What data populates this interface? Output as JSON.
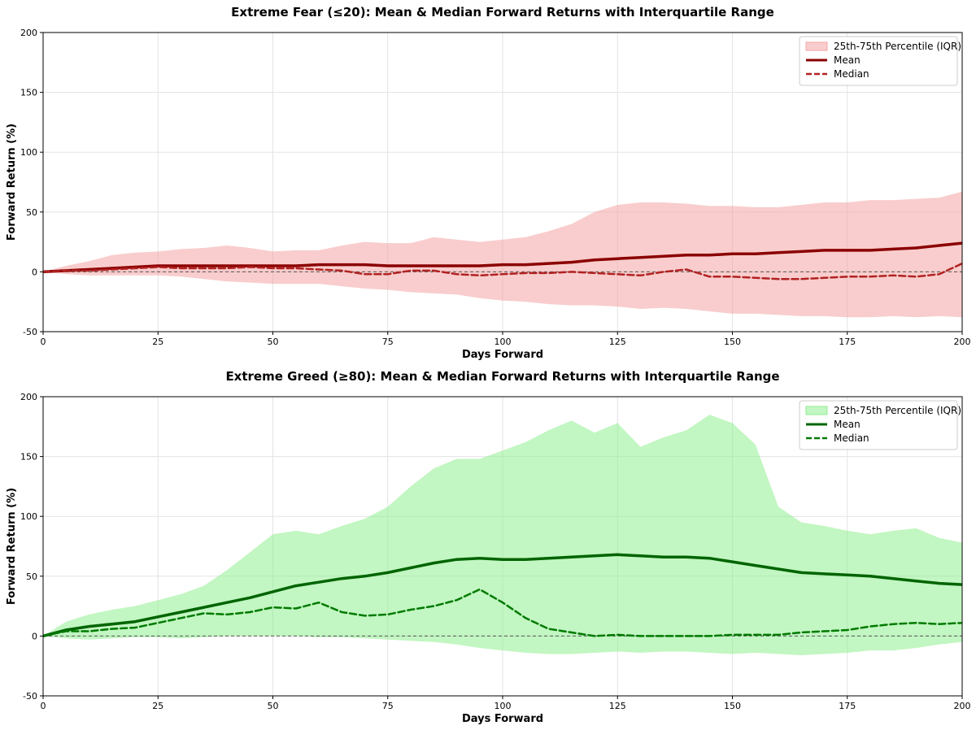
{
  "chart_data": [
    {
      "type": "area",
      "title": "Extreme Fear (≤20): Mean & Median Forward Returns with Interquartile Range",
      "xlabel": "Days Forward",
      "ylabel": "Forward Return (%)",
      "xlim": [
        0,
        200
      ],
      "ylim": [
        -50,
        200
      ],
      "xticks": [
        "0",
        "25",
        "50",
        "75",
        "100",
        "125",
        "150",
        "175",
        "200"
      ],
      "yticks": [
        "-50",
        "0",
        "50",
        "100",
        "150",
        "200"
      ],
      "grid": true,
      "legend_position": "top-right",
      "zero_line": true,
      "colors": {
        "band": "#f4a4a4",
        "mean": "#8b0000",
        "median": "#b22222"
      },
      "legend": [
        "25th-75th Percentile (IQR)",
        "Mean",
        "Median"
      ],
      "x": [
        0,
        5,
        10,
        15,
        20,
        25,
        30,
        35,
        40,
        45,
        50,
        55,
        60,
        65,
        70,
        75,
        80,
        85,
        90,
        95,
        100,
        105,
        110,
        115,
        120,
        125,
        130,
        135,
        140,
        145,
        150,
        155,
        160,
        165,
        170,
        175,
        180,
        185,
        190,
        195,
        200
      ],
      "series": [
        {
          "name": "25th-75th Percentile (IQR)",
          "kind": "band",
          "upper": [
            0,
            5,
            9,
            14,
            16,
            17,
            19,
            20,
            22,
            20,
            17,
            18,
            18,
            22,
            25,
            24,
            24,
            29,
            27,
            25,
            27,
            29,
            34,
            40,
            50,
            56,
            58,
            58,
            57,
            55,
            55,
            54,
            54,
            56,
            58,
            58,
            60,
            60,
            61,
            62,
            67
          ],
          "lower": [
            0,
            -2,
            -3,
            -3,
            -3,
            -3,
            -4,
            -6,
            -8,
            -9,
            -10,
            -10,
            -10,
            -12,
            -14,
            -15,
            -17,
            -18,
            -19,
            -22,
            -24,
            -25,
            -27,
            -28,
            -28,
            -29,
            -31,
            -30,
            -31,
            -33,
            -35,
            -35,
            -36,
            -37,
            -37,
            -38,
            -38,
            -37,
            -38,
            -37,
            -38
          ]
        },
        {
          "name": "Mean",
          "kind": "line",
          "dash": false,
          "values": [
            0,
            1,
            2,
            3,
            4,
            5,
            5,
            5,
            5,
            5,
            5,
            5,
            6,
            6,
            6,
            5,
            5,
            5,
            5,
            5,
            6,
            6,
            7,
            8,
            10,
            11,
            12,
            13,
            14,
            14,
            15,
            15,
            16,
            17,
            18,
            18,
            18,
            19,
            20,
            22,
            24
          ]
        },
        {
          "name": "Median",
          "kind": "line",
          "dash": true,
          "values": [
            0,
            1,
            1,
            2,
            3,
            4,
            3,
            3,
            3,
            4,
            3,
            3,
            2,
            1,
            -2,
            -2,
            1,
            1,
            -2,
            -3,
            -2,
            -1,
            -1,
            0,
            -1,
            -2,
            -3,
            0,
            2,
            -4,
            -4,
            -5,
            -6,
            -6,
            -5,
            -4,
            -4,
            -3,
            -4,
            -2,
            7
          ]
        }
      ]
    },
    {
      "type": "area",
      "title": "Extreme Greed (≥80): Mean & Median Forward Returns with Interquartile Range",
      "xlabel": "Days Forward",
      "ylabel": "Forward Return (%)",
      "xlim": [
        0,
        200
      ],
      "ylim": [
        -50,
        200
      ],
      "xticks": [
        "0",
        "25",
        "50",
        "75",
        "100",
        "125",
        "150",
        "175",
        "200"
      ],
      "yticks": [
        "-50",
        "0",
        "50",
        "100",
        "150",
        "200"
      ],
      "grid": true,
      "legend_position": "top-right",
      "zero_line": true,
      "colors": {
        "band": "#90ee90",
        "mean": "#006400",
        "median": "#007a00"
      },
      "legend": [
        "25th-75th Percentile (IQR)",
        "Mean",
        "Median"
      ],
      "x": [
        0,
        5,
        10,
        15,
        20,
        25,
        30,
        35,
        40,
        45,
        50,
        55,
        60,
        65,
        70,
        75,
        80,
        85,
        90,
        95,
        100,
        105,
        110,
        115,
        120,
        125,
        130,
        135,
        140,
        145,
        150,
        155,
        160,
        165,
        170,
        175,
        180,
        185,
        190,
        195,
        200
      ],
      "series": [
        {
          "name": "25th-75th Percentile (IQR)",
          "kind": "band",
          "upper": [
            0,
            12,
            18,
            22,
            25,
            30,
            35,
            42,
            55,
            70,
            85,
            88,
            85,
            92,
            98,
            108,
            125,
            140,
            148,
            148,
            155,
            162,
            172,
            180,
            170,
            178,
            158,
            166,
            172,
            185,
            178,
            160,
            108,
            95,
            92,
            88,
            85,
            88,
            90,
            82,
            78
          ],
          "lower": [
            0,
            -2,
            -3,
            -2,
            -1,
            -1,
            -2,
            -1,
            0,
            0,
            0,
            0,
            -1,
            -1,
            -2,
            -3,
            -4,
            -5,
            -7,
            -10,
            -12,
            -14,
            -15,
            -15,
            -14,
            -13,
            -14,
            -13,
            -13,
            -14,
            -15,
            -14,
            -15,
            -16,
            -15,
            -14,
            -12,
            -12,
            -10,
            -7,
            -5
          ]
        },
        {
          "name": "Mean",
          "kind": "line",
          "dash": false,
          "values": [
            0,
            5,
            8,
            10,
            12,
            16,
            20,
            24,
            28,
            32,
            37,
            42,
            45,
            48,
            50,
            53,
            57,
            61,
            64,
            65,
            64,
            64,
            65,
            66,
            67,
            68,
            67,
            66,
            66,
            65,
            62,
            59,
            56,
            53,
            52,
            51,
            50,
            48,
            46,
            44,
            43
          ]
        },
        {
          "name": "Median",
          "kind": "line",
          "dash": true,
          "values": [
            0,
            4,
            4,
            6,
            7,
            11,
            15,
            19,
            18,
            20,
            24,
            23,
            28,
            20,
            17,
            18,
            22,
            25,
            30,
            39,
            28,
            15,
            6,
            3,
            0,
            1,
            0,
            0,
            0,
            0,
            1,
            1,
            1,
            3,
            4,
            5,
            8,
            10,
            11,
            10,
            11
          ]
        }
      ]
    }
  ]
}
